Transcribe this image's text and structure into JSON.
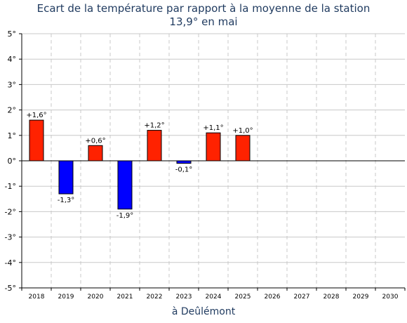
{
  "chart_data": {
    "type": "bar",
    "title": "Ecart de la température par rapport à la moyenne de la station",
    "subtitle": "13,9° en mai",
    "xlabel": "à Deûlémont",
    "categories": [
      "2018",
      "2019",
      "2020",
      "2021",
      "2022",
      "2023",
      "2024",
      "2025",
      "2026",
      "2027",
      "2028",
      "2029",
      "2030"
    ],
    "values": [
      1.6,
      -1.3,
      0.6,
      -1.9,
      1.2,
      -0.1,
      1.1,
      1.0,
      null,
      null,
      null,
      null,
      null
    ],
    "value_labels": [
      "+1,6°",
      "-1,3°",
      "+0,6°",
      "-1,9°",
      "+1,2°",
      "-0,1°",
      "+1,1°",
      "+1,0°",
      "",
      "",
      "",
      "",
      ""
    ],
    "y_ticks": [
      "-5°",
      "-4°",
      "-3°",
      "-2°",
      "-1°",
      "0°",
      "1°",
      "2°",
      "3°",
      "4°",
      "5°"
    ],
    "ylim": [
      -5,
      5
    ],
    "grid": true,
    "colors": {
      "positive": "#ff2200",
      "negative": "#0000ff",
      "grid": "#c8c8c8",
      "title": "#1f3a5f"
    }
  }
}
